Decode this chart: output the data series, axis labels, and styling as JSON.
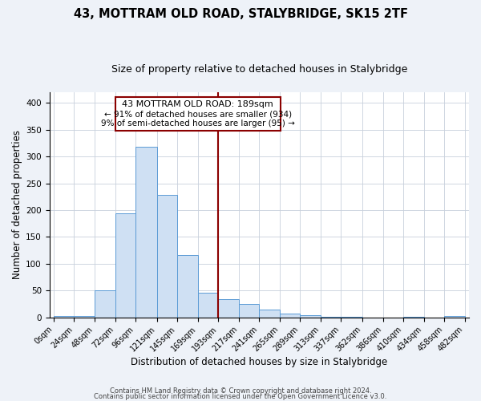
{
  "title": "43, MOTTRAM OLD ROAD, STALYBRIDGE, SK15 2TF",
  "subtitle": "Size of property relative to detached houses in Stalybridge",
  "xlabel": "Distribution of detached houses by size in Stalybridge",
  "ylabel": "Number of detached properties",
  "bar_edges": [
    0,
    24,
    48,
    72,
    96,
    121,
    145,
    169,
    193,
    217,
    241,
    265,
    289,
    313,
    337,
    362,
    386,
    410,
    434,
    458,
    482
  ],
  "bar_heights": [
    2,
    3,
    51,
    194,
    318,
    228,
    117,
    46,
    34,
    25,
    15,
    7,
    4,
    1,
    1,
    0,
    0,
    1,
    0,
    2
  ],
  "bar_color": "#cfe0f3",
  "bar_edge_color": "#5b9bd5",
  "vline_x": 193,
  "vline_color": "#8b0000",
  "ylim": [
    0,
    420
  ],
  "annotation_title": "43 MOTTRAM OLD ROAD: 189sqm",
  "annotation_line1": "← 91% of detached houses are smaller (934)",
  "annotation_line2": "9% of semi-detached houses are larger (95) →",
  "tick_labels": [
    "0sqm",
    "24sqm",
    "48sqm",
    "72sqm",
    "96sqm",
    "121sqm",
    "145sqm",
    "169sqm",
    "193sqm",
    "217sqm",
    "241sqm",
    "265sqm",
    "289sqm",
    "313sqm",
    "337sqm",
    "362sqm",
    "386sqm",
    "410sqm",
    "434sqm",
    "458sqm",
    "482sqm"
  ],
  "yticks": [
    0,
    50,
    100,
    150,
    200,
    250,
    300,
    350,
    400
  ],
  "footer_line1": "Contains HM Land Registry data © Crown copyright and database right 2024.",
  "footer_line2": "Contains public sector information licensed under the Open Government Licence v3.0.",
  "background_color": "#eef2f8",
  "plot_bg_color": "#ffffff",
  "grid_color": "#c8d0dc",
  "title_fontsize": 10.5,
  "subtitle_fontsize": 9,
  "axis_label_fontsize": 8.5,
  "tick_fontsize": 7,
  "footer_fontsize": 6,
  "annotation_fontsize_title": 8,
  "annotation_fontsize_body": 7.5
}
